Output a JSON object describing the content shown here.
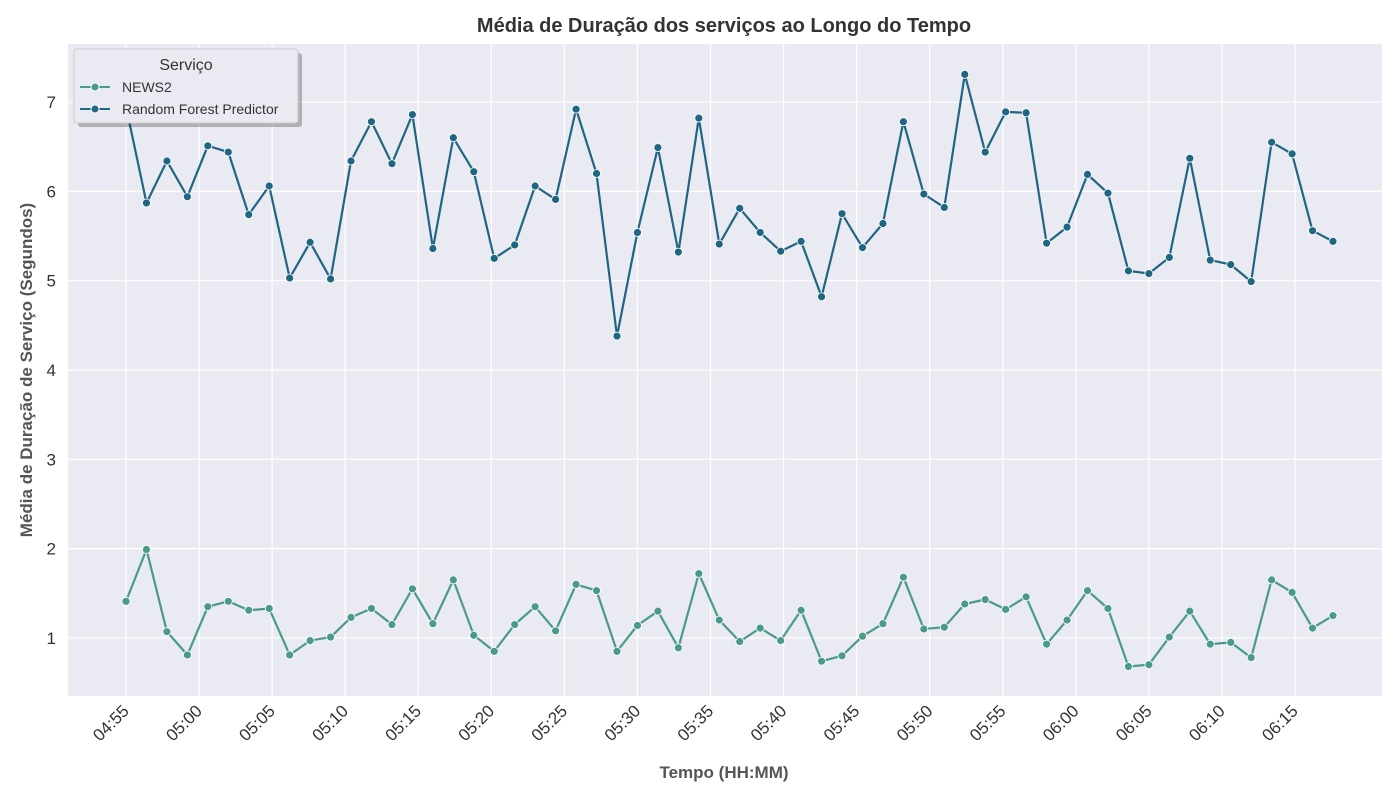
{
  "chart_data": {
    "type": "line",
    "title": "Média de Duração dos serviços ao Longo do Tempo",
    "xlabel": "Tempo (HH:MM)",
    "ylabel": "Média de Duração de Serviço (Segundos)",
    "x_ticks": [
      "04:55",
      "05:00",
      "05:05",
      "05:10",
      "05:15",
      "05:20",
      "05:25",
      "05:30",
      "05:35",
      "05:40",
      "05:45",
      "05:50",
      "05:55",
      "06:00",
      "06:05",
      "06:10",
      "06:15"
    ],
    "y_ticks": [
      1,
      2,
      3,
      4,
      5,
      6,
      7
    ],
    "ylim": [
      0.35,
      7.65
    ],
    "x_start": "04:55",
    "x_step_min": 1.4,
    "grid": true,
    "legend": {
      "title": "Serviço",
      "position": "top-left"
    },
    "series": [
      {
        "name": "NEWS2",
        "color": "#4a9a8c",
        "values": [
          1.41,
          1.99,
          1.07,
          0.81,
          1.35,
          1.41,
          1.31,
          1.33,
          0.81,
          0.97,
          1.01,
          1.23,
          1.33,
          1.15,
          1.55,
          1.16,
          1.65,
          1.03,
          0.85,
          1.15,
          1.35,
          1.08,
          1.6,
          1.53,
          0.85,
          1.14,
          1.3,
          0.89,
          1.72,
          1.2,
          0.96,
          1.11,
          0.97,
          1.31,
          0.74,
          0.8,
          1.02,
          1.16,
          1.68,
          1.1,
          1.12,
          1.38,
          1.43,
          1.32,
          1.46,
          0.93,
          1.2,
          1.53,
          1.33,
          0.68,
          0.7,
          1.01,
          1.3,
          0.93,
          0.95,
          0.78,
          1.65,
          1.51,
          1.11,
          1.25
        ]
      },
      {
        "name": "Random Forest Predictor",
        "color": "#1f6682",
        "values": [
          6.95,
          5.87,
          6.34,
          5.94,
          6.51,
          6.44,
          5.74,
          6.06,
          5.03,
          5.43,
          5.02,
          6.34,
          6.78,
          6.31,
          6.86,
          5.36,
          6.6,
          6.22,
          5.25,
          5.4,
          6.06,
          5.91,
          6.92,
          6.2,
          4.38,
          5.54,
          6.49,
          5.32,
          6.82,
          5.41,
          5.81,
          5.54,
          5.33,
          5.44,
          4.82,
          5.75,
          5.37,
          5.64,
          6.78,
          5.97,
          5.82,
          7.31,
          6.44,
          6.89,
          6.88,
          5.42,
          5.6,
          6.19,
          5.98,
          5.11,
          5.08,
          5.26,
          6.37,
          5.23,
          5.18,
          4.99,
          6.55,
          6.42,
          5.56,
          5.44
        ]
      }
    ]
  }
}
